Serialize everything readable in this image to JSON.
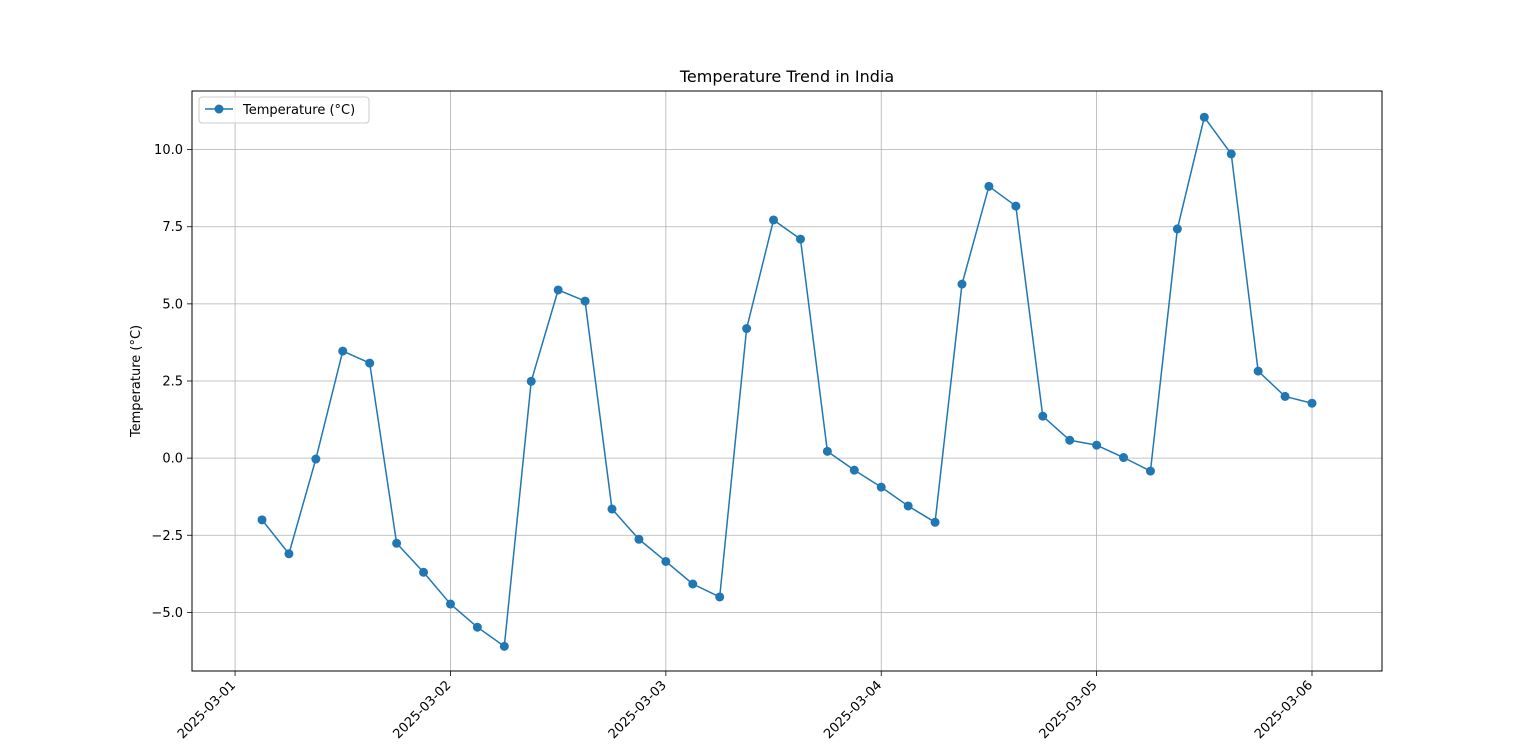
{
  "chart_data": {
    "type": "line",
    "title": "Temperature Trend in India",
    "xlabel": "",
    "ylabel": "Temperature (°C)",
    "x": [
      "2025-03-01 03:00",
      "2025-03-01 06:00",
      "2025-03-01 09:00",
      "2025-03-01 12:00",
      "2025-03-01 15:00",
      "2025-03-01 18:00",
      "2025-03-01 21:00",
      "2025-03-02 00:00",
      "2025-03-02 03:00",
      "2025-03-02 06:00",
      "2025-03-02 09:00",
      "2025-03-02 12:00",
      "2025-03-02 15:00",
      "2025-03-02 18:00",
      "2025-03-02 21:00",
      "2025-03-03 00:00",
      "2025-03-03 03:00",
      "2025-03-03 06:00",
      "2025-03-03 09:00",
      "2025-03-03 12:00",
      "2025-03-03 15:00",
      "2025-03-03 18:00",
      "2025-03-03 21:00",
      "2025-03-04 00:00",
      "2025-03-04 03:00",
      "2025-03-04 06:00",
      "2025-03-04 09:00",
      "2025-03-04 12:00",
      "2025-03-04 15:00",
      "2025-03-04 18:00",
      "2025-03-04 21:00",
      "2025-03-05 00:00",
      "2025-03-05 03:00",
      "2025-03-05 06:00",
      "2025-03-05 09:00",
      "2025-03-05 12:00",
      "2025-03-05 15:00",
      "2025-03-05 18:00",
      "2025-03-05 21:00",
      "2025-03-06 00:00"
    ],
    "series": [
      {
        "name": "Temperature (°C)",
        "color": "#1f77b4",
        "marker": "circle",
        "values": [
          -2.0,
          -3.1,
          -0.03,
          3.47,
          3.08,
          -2.76,
          -3.7,
          -4.73,
          -5.48,
          -6.1,
          2.49,
          5.45,
          5.09,
          -1.65,
          -2.63,
          -3.35,
          -4.08,
          -4.5,
          4.2,
          7.72,
          7.1,
          0.22,
          -0.39,
          -0.94,
          -1.55,
          -2.08,
          5.64,
          8.81,
          8.17,
          1.36,
          0.58,
          0.42,
          0.02,
          -0.42,
          7.43,
          11.05,
          9.86,
          2.82,
          2.0,
          1.78
        ]
      }
    ],
    "xlim": [
      "2025-02-28 19:12",
      "2025-03-06 07:48"
    ],
    "ylim": [
      -6.9,
      11.9
    ],
    "xticks": [
      "2025-03-01",
      "2025-03-02",
      "2025-03-03",
      "2025-03-04",
      "2025-03-05",
      "2025-03-06"
    ],
    "yticks": [
      -5.0,
      -2.5,
      0.0,
      2.5,
      5.0,
      7.5,
      10.0
    ],
    "ytick_labels": [
      "−5.0",
      "−2.5",
      "0.0",
      "2.5",
      "5.0",
      "7.5",
      "10.0"
    ],
    "grid": true,
    "legend": "upper-left"
  }
}
